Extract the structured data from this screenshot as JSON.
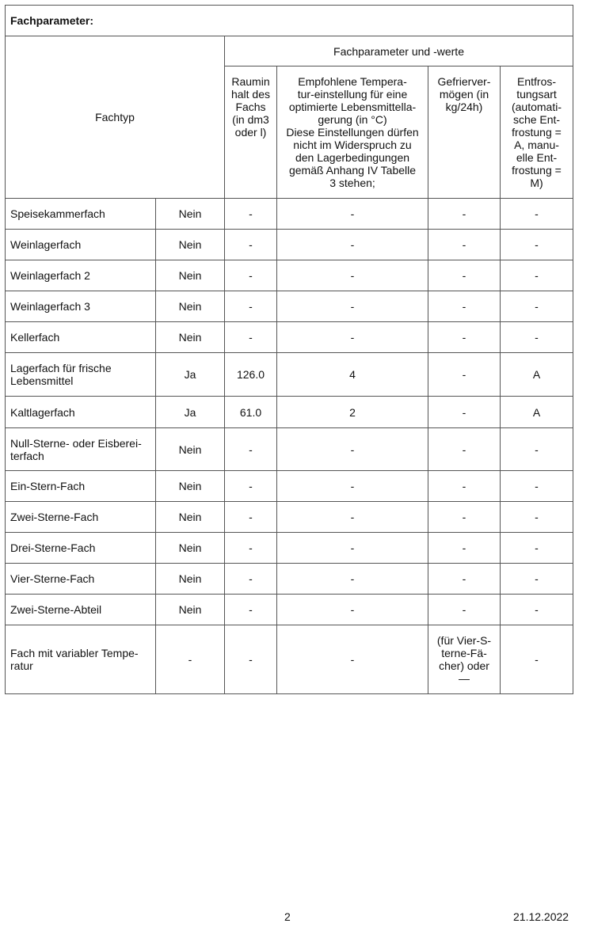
{
  "title": "Fachparameter:",
  "header": {
    "fachtyp": "Fachtyp",
    "group": "Fachparameter und -werte",
    "columns": [
      "Raumin\nhalt des\nFachs\n(in dm3\noder l)",
      "Empfohlene Tempera-\ntur-einstellung für eine\noptimierte Lebensmittella-\ngerung (in °C)\nDiese Einstellungen dürfen\nnicht im Widerspruch zu\nden Lagerbedingungen\ngemäß Anhang IV Tabelle\n3 stehen;",
      "Gefrierver-\nmögen (in\nkg/24h)",
      "Entfros-\ntungsart\n(automati-\nsche Ent-\nfrostung =\nA, manu-\nelle Ent-\nfrostung =\nM)"
    ]
  },
  "rows": [
    {
      "name": "Speisekammerfach",
      "present": "Nein",
      "volume": "-",
      "temp": "-",
      "freeze": "-",
      "defrost": "-"
    },
    {
      "name": "Weinlagerfach",
      "present": "Nein",
      "volume": "-",
      "temp": "-",
      "freeze": "-",
      "defrost": "-"
    },
    {
      "name": "Weinlagerfach 2",
      "present": "Nein",
      "volume": "-",
      "temp": "-",
      "freeze": "-",
      "defrost": "-"
    },
    {
      "name": "Weinlagerfach 3",
      "present": "Nein",
      "volume": "-",
      "temp": "-",
      "freeze": "-",
      "defrost": "-"
    },
    {
      "name": "Kellerfach",
      "present": "Nein",
      "volume": "-",
      "temp": "-",
      "freeze": "-",
      "defrost": "-"
    },
    {
      "name": "Lagerfach für frische\nLebensmittel",
      "present": "Ja",
      "volume": "126.0",
      "temp": "4",
      "freeze": "-",
      "defrost": "A"
    },
    {
      "name": "Kaltlagerfach",
      "present": "Ja",
      "volume": "61.0",
      "temp": "2",
      "freeze": "-",
      "defrost": "A"
    },
    {
      "name": "Null-Sterne- oder Eisberei-\nterfach",
      "present": "Nein",
      "volume": "-",
      "temp": "-",
      "freeze": "-",
      "defrost": "-"
    },
    {
      "name": "Ein-Stern-Fach",
      "present": "Nein",
      "volume": "-",
      "temp": "-",
      "freeze": "-",
      "defrost": "-"
    },
    {
      "name": "Zwei-Sterne-Fach",
      "present": "Nein",
      "volume": "-",
      "temp": "-",
      "freeze": "-",
      "defrost": "-"
    },
    {
      "name": "Drei-Sterne-Fach",
      "present": "Nein",
      "volume": "-",
      "temp": "-",
      "freeze": "-",
      "defrost": "-"
    },
    {
      "name": "Vier-Sterne-Fach",
      "present": "Nein",
      "volume": "-",
      "temp": "-",
      "freeze": "-",
      "defrost": "-"
    },
    {
      "name": "Zwei-Sterne-Abteil",
      "present": "Nein",
      "volume": "-",
      "temp": "-",
      "freeze": "-",
      "defrost": "-"
    },
    {
      "name": "Fach mit variabler Tempe-\nratur",
      "present": "-",
      "volume": "-",
      "temp": "-",
      "freeze": " (für Vier-S-\nterne-Fä-\ncher) oder\n—",
      "defrost": "-"
    }
  ],
  "footer": {
    "page": "2",
    "date": "21.12.2022"
  }
}
